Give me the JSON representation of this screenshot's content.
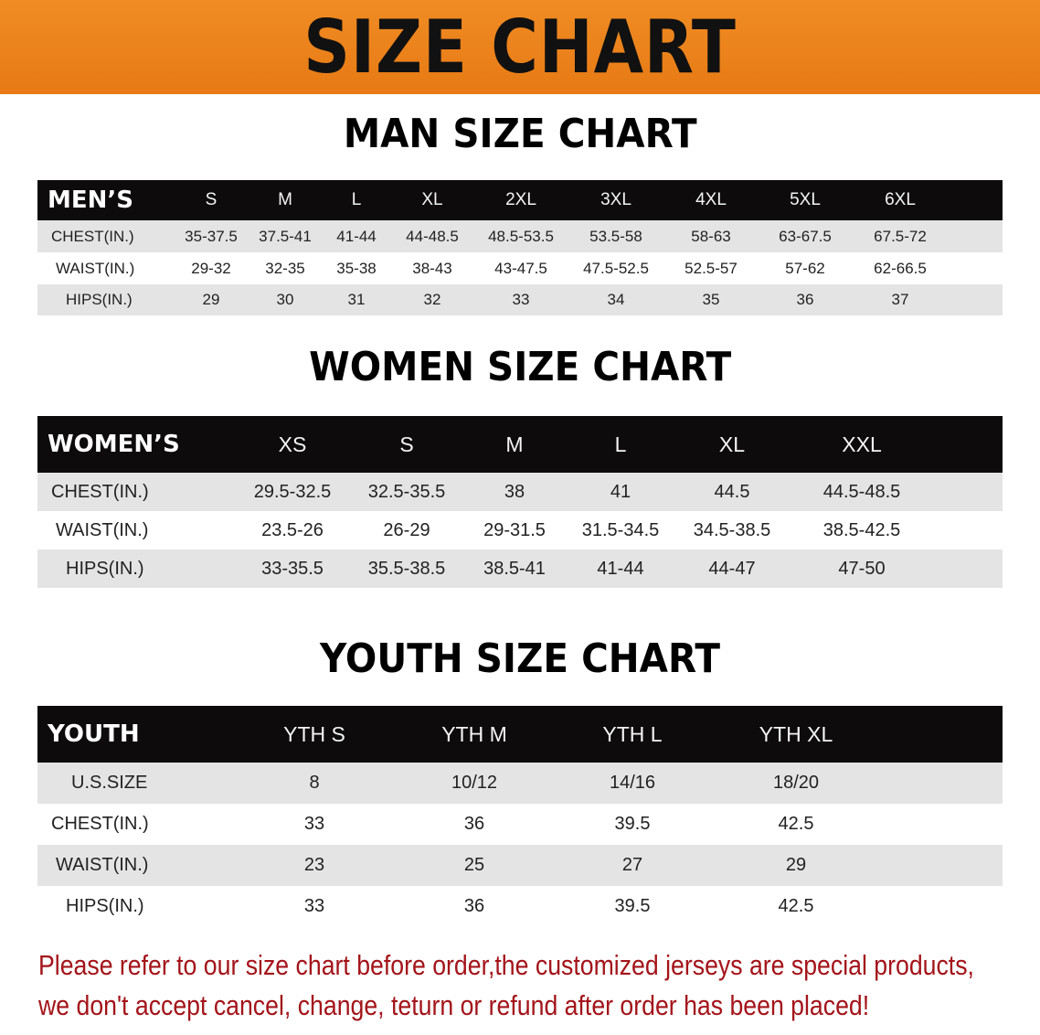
{
  "banner": {
    "title": "SIZE CHART"
  },
  "men": {
    "title": "MAN SIZE CHART",
    "header_label": "MEN’S",
    "sizes": [
      "S",
      "M",
      "L",
      "XL",
      "2XL",
      "3XL",
      "4XL",
      "5XL",
      "6XL"
    ],
    "rows": [
      {
        "label": "CHEST(IN.)",
        "values": [
          "35-37.5",
          "37.5-41",
          "41-44",
          "44-48.5",
          "48.5-53.5",
          "53.5-58",
          "58-63",
          "63-67.5",
          "67.5-72"
        ]
      },
      {
        "label": "WAIST(IN.)",
        "values": [
          "29-32",
          "32-35",
          "35-38",
          "38-43",
          "43-47.5",
          "47.5-52.5",
          "52.5-57",
          "57-62",
          "62-66.5"
        ]
      },
      {
        "label": "HIPS(IN.)",
        "values": [
          "29",
          "30",
          "31",
          "32",
          "33",
          "34",
          "35",
          "36",
          "37"
        ]
      }
    ]
  },
  "women": {
    "title": "WOMEN SIZE CHART",
    "header_label": "WOMEN’S",
    "sizes": [
      "XS",
      "S",
      "M",
      "L",
      "XL",
      "XXL"
    ],
    "rows": [
      {
        "label": "CHEST(IN.)",
        "values": [
          "29.5-32.5",
          "32.5-35.5",
          "38",
          "41",
          "44.5",
          "44.5-48.5"
        ]
      },
      {
        "label": "WAIST(IN.)",
        "values": [
          "23.5-26",
          "26-29",
          "29-31.5",
          "31.5-34.5",
          "34.5-38.5",
          "38.5-42.5"
        ]
      },
      {
        "label": "HIPS(IN.)",
        "values": [
          "33-35.5",
          "35.5-38.5",
          "38.5-41",
          "41-44",
          "44-47",
          "47-50"
        ]
      }
    ]
  },
  "youth": {
    "title": "YOUTH SIZE CHART",
    "header_label": "YOUTH",
    "sizes": [
      "YTH S",
      "YTH M",
      "YTH L",
      "YTH XL"
    ],
    "rows": [
      {
        "label": "U.S.SIZE",
        "values": [
          "8",
          "10/12",
          "14/16",
          "18/20"
        ]
      },
      {
        "label": "CHEST(IN.)",
        "values": [
          "33",
          "36",
          "39.5",
          "42.5"
        ]
      },
      {
        "label": "WAIST(IN.)",
        "values": [
          "23",
          "25",
          "27",
          "29"
        ]
      },
      {
        "label": "HIPS(IN.)",
        "values": [
          "33",
          "36",
          "39.5",
          "42.5"
        ]
      }
    ]
  },
  "notice": {
    "line1": "Please refer to our size chart before order,the customized jerseys are special products,",
    "line2": "we don't accept cancel, change, teturn or refund after order has been placed!"
  },
  "colors": {
    "banner": "#ec841c",
    "header_row": "#0d0b0b",
    "stripe": "#e4e4e4",
    "notice": "#a3141a"
  }
}
